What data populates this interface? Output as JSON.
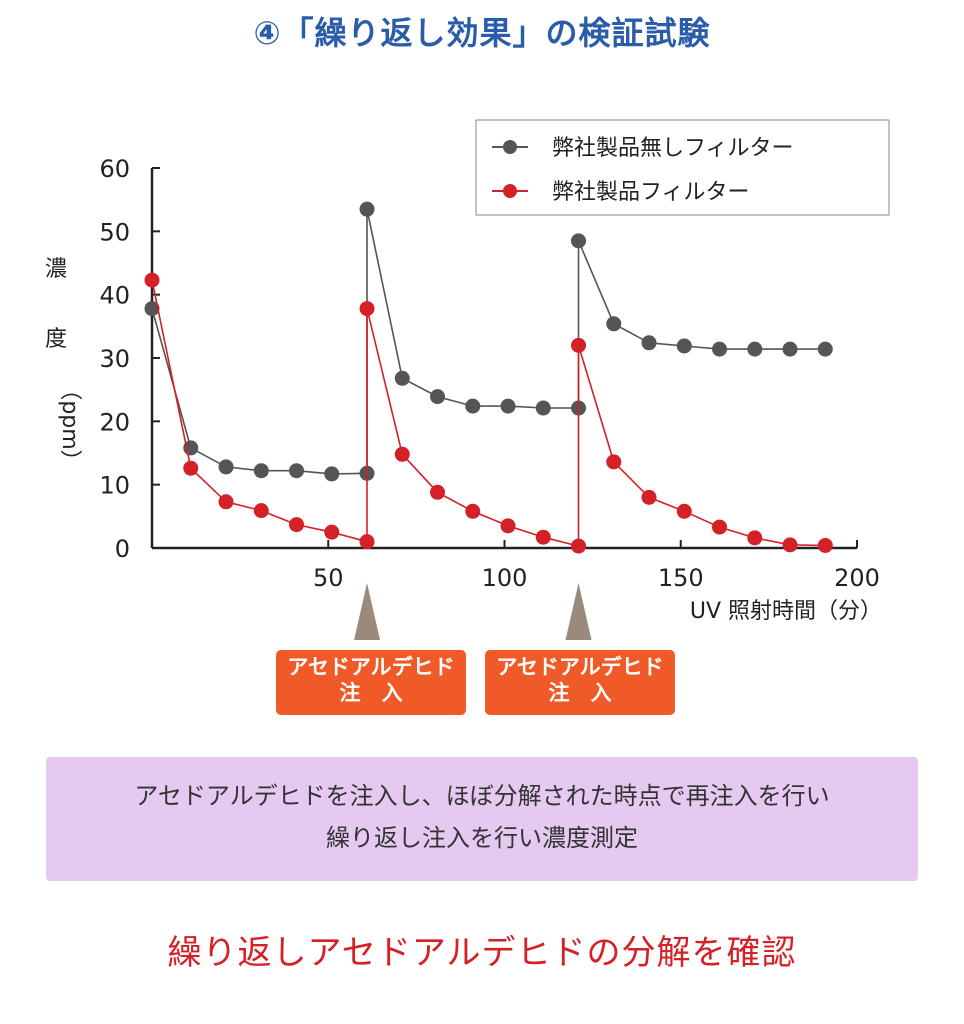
{
  "title": "④「繰り返し効果」の検証試験",
  "chart_data": {
    "type": "line",
    "xlabel": "UV 照射時間（分）",
    "ylabel_chars": [
      "濃",
      "度",
      "（ppm）"
    ],
    "xlim": [
      0,
      200
    ],
    "ylim": [
      0,
      60
    ],
    "x_ticks": [
      50,
      100,
      150,
      200
    ],
    "y_ticks": [
      0,
      10,
      20,
      30,
      40,
      50,
      60
    ],
    "legend_position": "top-right",
    "grid": false,
    "series": [
      {
        "name": "弊社製品無しフィルター",
        "color": "#555555",
        "x": [
          0,
          11,
          21,
          31,
          41,
          51,
          61,
          61,
          71,
          81,
          91,
          101,
          111,
          121,
          121,
          131,
          141,
          151,
          161,
          171,
          181,
          191
        ],
        "y": [
          37.8,
          15.8,
          12.8,
          12.2,
          12.2,
          11.7,
          11.8,
          53.5,
          26.8,
          23.9,
          22.4,
          22.4,
          22.1,
          22.1,
          48.5,
          35.4,
          32.4,
          31.9,
          31.4,
          31.4,
          31.4,
          31.4
        ]
      },
      {
        "name": "弊社製品フィルター",
        "color": "#d42027",
        "x": [
          0,
          11,
          21,
          31,
          41,
          51,
          61,
          61,
          71,
          81,
          91,
          101,
          111,
          121,
          121,
          131,
          141,
          151,
          161,
          171,
          181,
          191
        ],
        "y": [
          42.3,
          12.6,
          7.3,
          5.9,
          3.7,
          2.5,
          1.0,
          37.8,
          14.8,
          8.8,
          5.8,
          3.5,
          1.7,
          0.3,
          32.0,
          13.6,
          8.0,
          5.8,
          3.3,
          1.6,
          0.5,
          0.4
        ]
      }
    ],
    "annotations": [
      {
        "x": 61,
        "label_line1": "アセドアルデヒド",
        "label_line2": "注　入"
      },
      {
        "x": 121,
        "label_line1": "アセドアルデヒド",
        "label_line2": "注　入"
      }
    ],
    "marker_color": "#9b8a7c"
  },
  "description": {
    "line1": "アセドアルデヒドを注入し、ほぼ分解された時点で再注入を行い",
    "line2": "繰り返し注入を行い濃度測定"
  },
  "footer": "繰り返しアセドアルデヒドの分解を確認"
}
